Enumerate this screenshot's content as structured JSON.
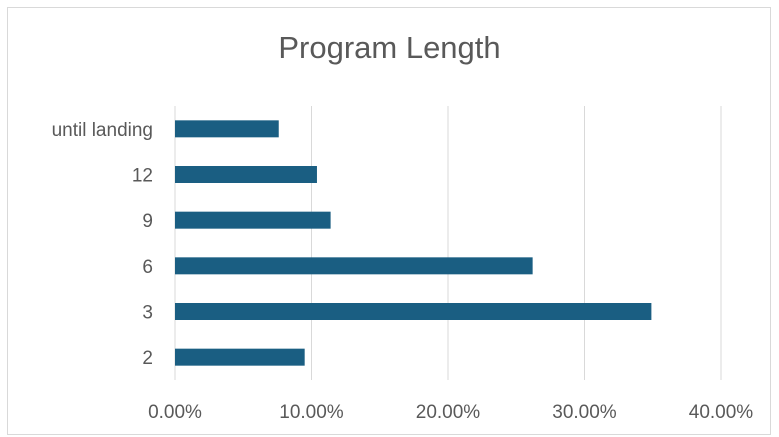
{
  "chart_data": {
    "type": "bar",
    "orientation": "horizontal",
    "title": "Program Length",
    "xlabel": "",
    "ylabel": "",
    "categories": [
      "2",
      "3",
      "6",
      "9",
      "12",
      "until landing"
    ],
    "values": [
      0.095,
      0.349,
      0.262,
      0.114,
      0.104,
      0.076
    ],
    "xlim": [
      0,
      0.4
    ],
    "x_ticks": [
      "0.00%",
      "10.00%",
      "20.00%",
      "30.00%",
      "40.00%"
    ],
    "grid": true,
    "legend": "none",
    "colors": {
      "bar": "#1a5e82",
      "grid": "#d9d9d9",
      "text": "#595959"
    }
  }
}
